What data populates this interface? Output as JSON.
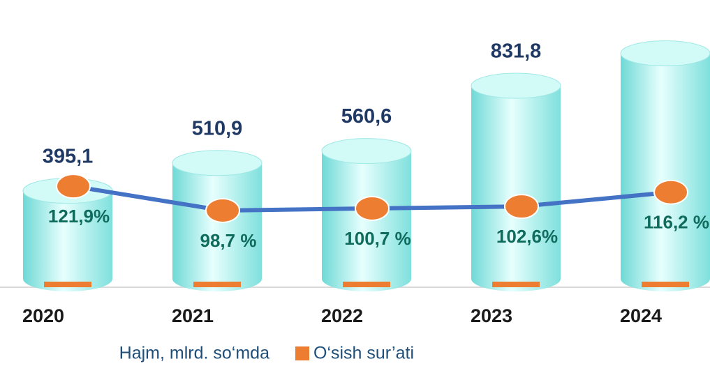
{
  "chart_data": {
    "type": "bar",
    "categories": [
      "2020",
      "2021",
      "2022",
      "2023",
      "2024"
    ],
    "series": [
      {
        "name": "Hajm, mlrd. so‘mda",
        "color": "#b8f0f0",
        "values": [
          395.1,
          510.9,
          560.6,
          831.8,
          966.6
        ],
        "value_labels": [
          "395,1",
          "510,9",
          "560,6",
          "831,8",
          null
        ]
      },
      {
        "name": "O‘sish sur’ati",
        "type": "line",
        "axis": "y2",
        "color": "#ed7d31",
        "line_color": "#4472c4",
        "values": [
          121.9,
          98.7,
          100.7,
          102.6,
          116.2
        ],
        "value_labels": [
          "121,9%",
          "98,7 %",
          "100,7 %",
          "102,6%",
          "116,2 %"
        ]
      }
    ]
  }
}
